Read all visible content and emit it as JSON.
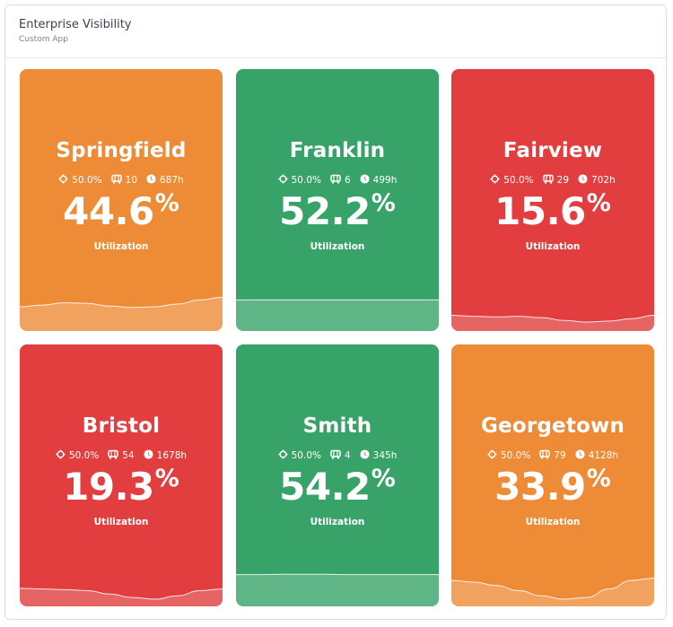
{
  "header": {
    "title": "Enterprise Visibility",
    "subtitle": "Custom App"
  },
  "colors": {
    "orange": "#ee8b36",
    "green": "#38a368",
    "red": "#e23e3f"
  },
  "cards": [
    {
      "name": "Springfield",
      "target": "50.0%",
      "count": "10",
      "hours": "687h",
      "value": "44.6",
      "pct": "%",
      "label": "Utilization",
      "status": "orange",
      "trend": [
        0.5,
        0.55,
        0.62,
        0.6,
        0.52,
        0.48,
        0.5,
        0.58,
        0.7,
        0.78
      ]
    },
    {
      "name": "Franklin",
      "target": "50.0%",
      "count": "6",
      "hours": "499h",
      "value": "52.2",
      "pct": "%",
      "label": "Utilization",
      "status": "green",
      "trend": [
        0.7,
        0.7,
        0.7,
        0.7,
        0.7,
        0.7,
        0.7,
        0.7,
        0.7,
        0.7
      ]
    },
    {
      "name": "Fairview",
      "target": "50.0%",
      "count": "29",
      "hours": "702h",
      "value": "15.6",
      "pct": "%",
      "label": "Utilization",
      "status": "red",
      "trend": [
        0.25,
        0.22,
        0.2,
        0.22,
        0.18,
        0.1,
        0.05,
        0.08,
        0.15,
        0.25
      ]
    },
    {
      "name": "Bristol",
      "target": "50.0%",
      "count": "54",
      "hours": "1678h",
      "value": "19.3",
      "pct": "%",
      "label": "Utilization",
      "status": "red",
      "trend": [
        0.32,
        0.3,
        0.28,
        0.25,
        0.15,
        0.05,
        0.0,
        0.1,
        0.25,
        0.3
      ]
    },
    {
      "name": "Smith",
      "target": "50.0%",
      "count": "4",
      "hours": "345h",
      "value": "54.2",
      "pct": "%",
      "label": "Utilization",
      "status": "green",
      "trend": [
        0.72,
        0.72,
        0.73,
        0.73,
        0.73,
        0.72,
        0.72,
        0.72,
        0.72,
        0.72
      ]
    },
    {
      "name": "Georgetown",
      "target": "50.0%",
      "count": "79",
      "hours": "4128h",
      "value": "33.9",
      "pct": "%",
      "label": "Utilization",
      "status": "orange",
      "trend": [
        0.55,
        0.5,
        0.4,
        0.25,
        0.1,
        0.0,
        0.05,
        0.3,
        0.55,
        0.62
      ]
    }
  ]
}
